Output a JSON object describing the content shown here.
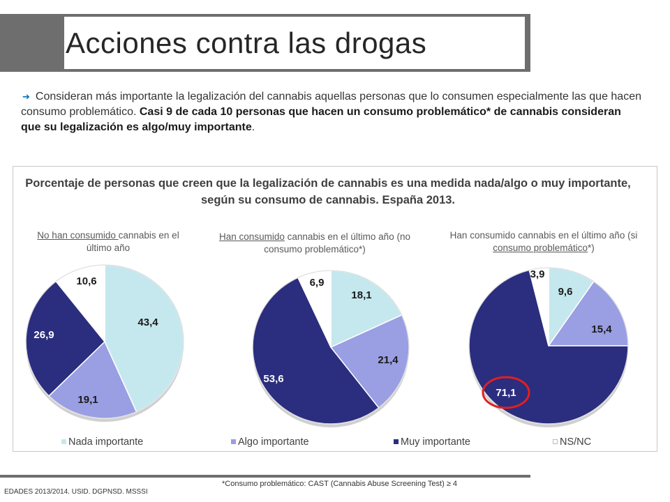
{
  "header": {
    "title": "Acciones contra las drogas"
  },
  "intro": {
    "arrow": "➔",
    "normal": "Consideran más importante la legalización del cannabis aquellas personas que lo consumen especialmente las que hacen consumo problemático.",
    "bold": "Casi 9 de cada 10 personas que hacen un consumo problemático* de cannabis consideran que su legalización es algo/muy importante",
    "end": "."
  },
  "chart_data": {
    "type": "pie",
    "title": "Porcentaje de personas que creen que la legalización de cannabis es una medida nada/algo o muy importante, según su consumo de cannabis. España 2013.",
    "legend_position": "bottom",
    "categories": [
      "Nada importante",
      "Algo importante",
      "Muy importante",
      "NS/NC"
    ],
    "colors": [
      "#c5e8ee",
      "#9a9ee3",
      "#2b2d7e",
      "#ffffff"
    ],
    "pies": [
      {
        "subtitle_parts": [
          {
            "text": "No han consumido ",
            "u": true
          },
          {
            "text": "cannabis en el último año",
            "u": false
          }
        ],
        "values": [
          43.4,
          19.1,
          26.9,
          10.6
        ],
        "labels": [
          "43,4",
          "19,1",
          "26,9",
          "10,6"
        ]
      },
      {
        "subtitle_parts": [
          {
            "text": "Han consumido",
            "u": true
          },
          {
            "text": " cannabis en el último año (no consumo problemático*)",
            "u": false
          }
        ],
        "values": [
          18.1,
          21.4,
          53.6,
          6.9
        ],
        "labels": [
          "18,1",
          "21,4",
          "53,6",
          "6,9"
        ]
      },
      {
        "subtitle_parts": [
          {
            "text": "Han consumido cannabis en el último año (si ",
            "u": false
          },
          {
            "text": "consumo problemático",
            "u": true
          },
          {
            "text": "*)",
            "u": false
          }
        ],
        "values": [
          9.6,
          15.4,
          71.1,
          3.9
        ],
        "labels": [
          "9,6",
          "15,4",
          "71,1",
          "3,9"
        ]
      }
    ],
    "highlight": {
      "pie": 2,
      "slice": 2,
      "color": "#e02020"
    }
  },
  "footer": {
    "footnote": "*Consumo problemático: CAST (Cannabis Abuse Screening Test) ≥ 4",
    "source": "EDADES 2013/2014. USID. DGPNSD. MSSSI"
  }
}
